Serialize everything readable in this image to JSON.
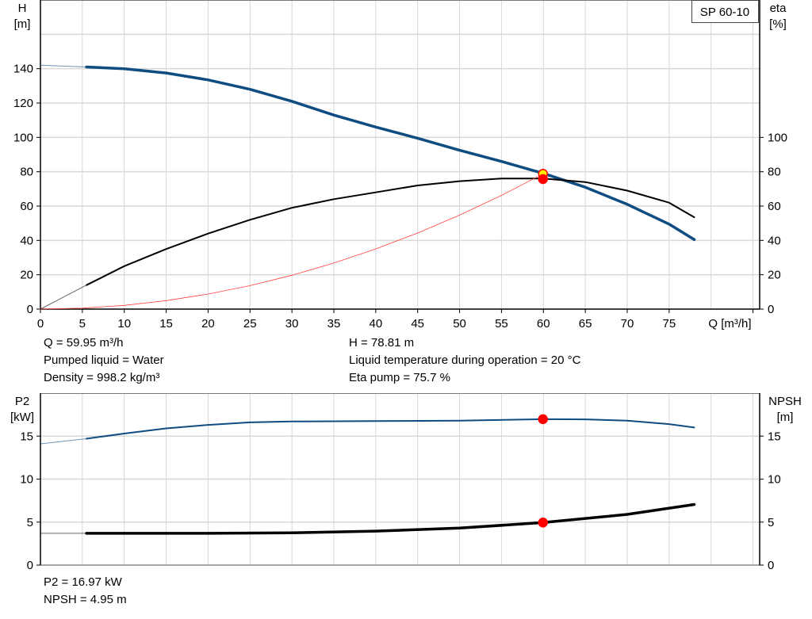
{
  "chart_data": [
    {
      "type": "line",
      "title": "",
      "model_label": "SP 60-10",
      "xlabel": "Q [m³/h]",
      "ylabel_left": [
        "H",
        "[m]"
      ],
      "ylabel_right": [
        "eta",
        "[%]"
      ],
      "xlim": [
        0,
        85.8
      ],
      "ylim_left": [
        0,
        180
      ],
      "ylim_right": [
        0,
        180
      ],
      "x_ticks": [
        0,
        5,
        10,
        15,
        20,
        25,
        30,
        35,
        40,
        45,
        50,
        55,
        60,
        65,
        70,
        75
      ],
      "y_ticks_left": [
        0,
        20,
        40,
        60,
        80,
        100,
        120,
        140
      ],
      "y_ticks_right": [
        0,
        20,
        40,
        60,
        80,
        100
      ],
      "grid": true,
      "series": [
        {
          "key": "H",
          "color": "#0f4c81",
          "axis": "left",
          "x": [
            5.5,
            10,
            15,
            20,
            25,
            30,
            35,
            40,
            45,
            50,
            55,
            60,
            65,
            70,
            75,
            78
          ],
          "y": [
            141,
            140,
            137.5,
            133.5,
            128,
            121,
            113,
            106,
            99.5,
            92.5,
            86,
            79,
            71,
            61,
            49.5,
            40.5
          ],
          "extrapolated": {
            "x": [
              0,
              5.5
            ],
            "y": [
              142,
              141
            ]
          }
        },
        {
          "key": "eta",
          "color": "#000000",
          "axis": "right",
          "x": [
            5.5,
            10,
            15,
            20,
            25,
            30,
            35,
            40,
            45,
            50,
            55,
            60,
            65,
            70,
            75,
            78
          ],
          "y": [
            14,
            25,
            35,
            44,
            52,
            59,
            64,
            68,
            72,
            74.5,
            76,
            76,
            74,
            69,
            62,
            53.5
          ],
          "extrapolated": {
            "x": [
              0,
              5.5
            ],
            "y": [
              0,
              14
            ]
          }
        },
        {
          "key": "system",
          "color": "#ff4040",
          "axis": "left",
          "x": [
            0,
            5,
            10,
            15,
            20,
            25,
            30,
            35,
            40,
            45,
            50,
            55,
            60
          ],
          "y": [
            0,
            0.55,
            2.19,
            4.93,
            8.76,
            13.68,
            19.7,
            26.82,
            35.03,
            44.33,
            54.73,
            66.22,
            78.81
          ]
        }
      ],
      "operating_points": [
        {
          "key": "H",
          "x": 59.95,
          "y": 78.81,
          "fill": "#ffee00",
          "stroke": "#ff0000"
        },
        {
          "key": "eta",
          "x": 59.95,
          "y": 75.7,
          "fill": "#ff0000",
          "stroke": "#ff0000"
        }
      ]
    },
    {
      "type": "line",
      "ylabel_left": [
        "P2",
        "[kW]"
      ],
      "ylabel_right": [
        "NPSH",
        "[m]"
      ],
      "xlim": [
        0,
        85.8
      ],
      "ylim_left": [
        0,
        20
      ],
      "ylim_right": [
        0,
        20
      ],
      "y_ticks_left": [
        0,
        5,
        10,
        15
      ],
      "y_ticks_right": [
        0,
        5,
        10,
        15
      ],
      "grid": true,
      "series": [
        {
          "key": "P2",
          "color": "#0f4c81",
          "axis": "left",
          "x": [
            5.5,
            10,
            15,
            20,
            25,
            30,
            40,
            50,
            60,
            65,
            70,
            75,
            78
          ],
          "y": [
            14.7,
            15.3,
            15.9,
            16.3,
            16.6,
            16.7,
            16.75,
            16.8,
            16.97,
            16.95,
            16.8,
            16.4,
            16.0
          ],
          "extrapolated": {
            "x": [
              0,
              5.5
            ],
            "y": [
              14.1,
              14.7
            ]
          }
        },
        {
          "key": "NPSH",
          "color": "#000000",
          "axis": "right",
          "x": [
            5.5,
            20,
            30,
            40,
            50,
            60,
            70,
            78
          ],
          "y": [
            3.7,
            3.7,
            3.75,
            3.95,
            4.3,
            4.95,
            5.9,
            7.05
          ],
          "extrapolated": {
            "x": [
              0,
              5.5
            ],
            "y": [
              3.7,
              3.7
            ]
          }
        }
      ],
      "operating_points": [
        {
          "key": "P2",
          "x": 59.95,
          "y": 16.97,
          "fill": "#ff0000",
          "stroke": "#ff0000"
        },
        {
          "key": "NPSH",
          "x": 59.95,
          "y": 4.95,
          "fill": "#ff0000",
          "stroke": "#ff0000"
        }
      ]
    }
  ],
  "info": {
    "q": "Q = 59.95 m³/h",
    "liquid": "Pumped liquid = Water",
    "density": "Density = 998.2 kg/m³",
    "h": "H = 78.81 m",
    "temp": "Liquid temperature during operation = 20 °C",
    "eta": "Eta pump = 75.7 %",
    "p2": "P2 = 16.97 kW",
    "npsh": "NPSH = 4.95 m"
  }
}
